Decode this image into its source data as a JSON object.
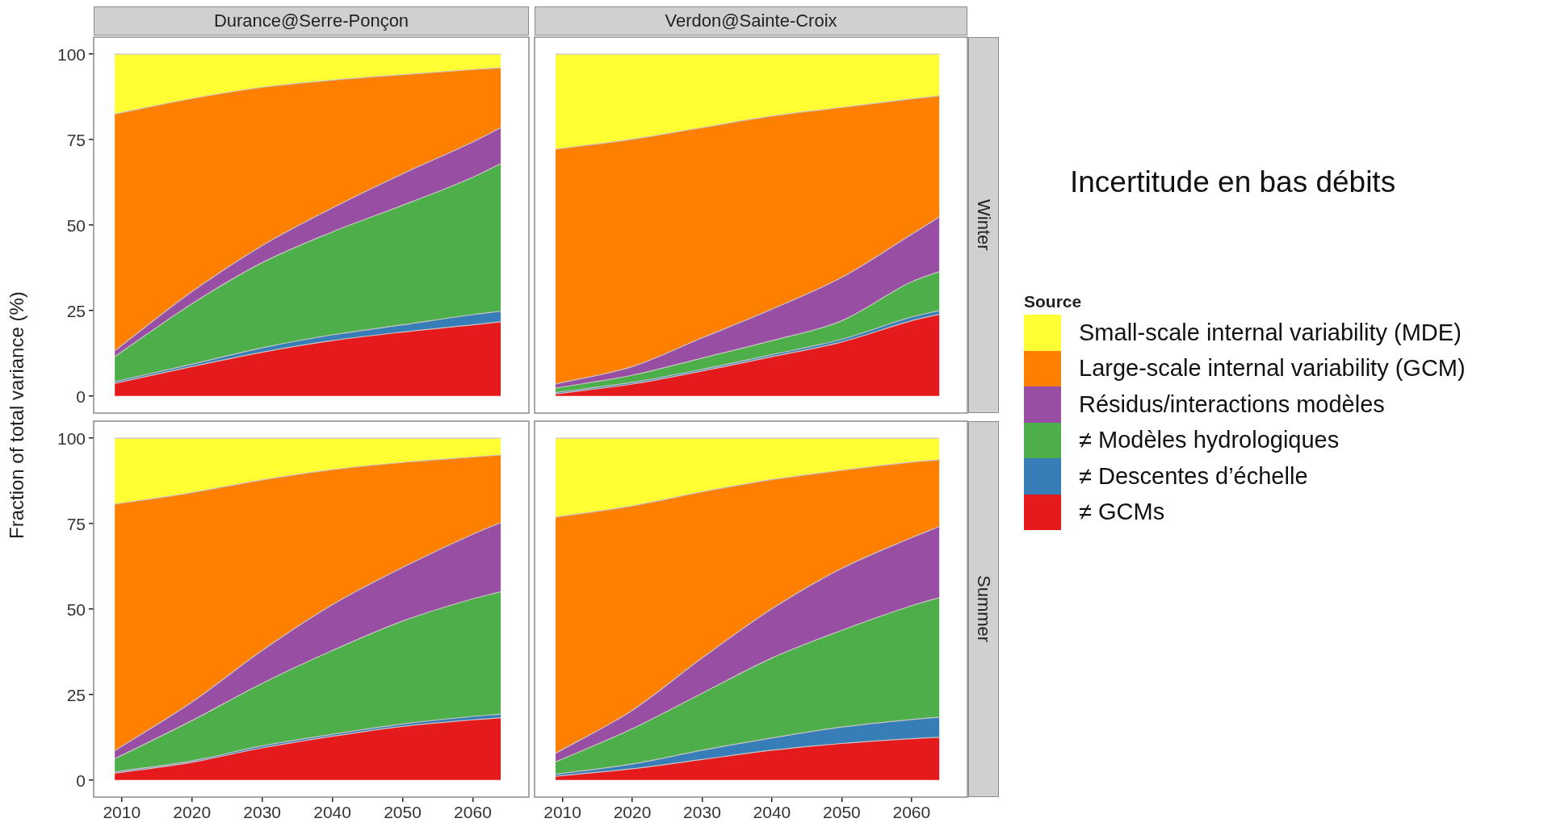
{
  "chart_data": [
    {
      "type": "area",
      "stacked": true,
      "title": "Durance@Serre-Ponçon",
      "ylabel": "Fraction of total variance (%)",
      "legend_title": "Source",
      "legend": "right",
      "annotations": [
        "Incertitude en bas débits"
      ],
      "tick_labels": "y",
      "x": [
        2009,
        2020,
        2030,
        2040,
        2050,
        2060,
        2064
      ],
      "xlim": [
        2006,
        2068
      ],
      "xticks": [
        2010,
        2020,
        2030,
        2040,
        2050,
        2060
      ],
      "ylim": [
        -5,
        105
      ],
      "yticks": [
        0,
        25,
        50,
        75,
        100
      ],
      "series": [
        {
          "name": "≠ GCMs",
          "color": "#e41a1c",
          "values": [
            3.7,
            8.6,
            12.8,
            16.2,
            18.7,
            20.8,
            21.7
          ]
        },
        {
          "name": "≠ Descentes d’échelle",
          "color": "#377eb8",
          "values": [
            0.5,
            0.7,
            1.3,
            1.7,
            2.1,
            3.0,
            3.1
          ]
        },
        {
          "name": "≠ Modèles hydrologiques",
          "color": "#4daf4a",
          "values": [
            7.3,
            17.7,
            24.9,
            30.1,
            35.0,
            40.2,
            43.2
          ]
        },
        {
          "name": "Résidus/interactions modèles",
          "color": "#984ea3",
          "values": [
            1.7,
            3.5,
            5.0,
            7.0,
            9.2,
            10.3,
            10.5
          ]
        },
        {
          "name": "Large-scale internal variability (GCM)",
          "color": "#ff7f00",
          "values": [
            69.3,
            56.5,
            46.3,
            37.4,
            29.0,
            21.2,
            17.5
          ]
        },
        {
          "name": "Small-scale internal variability (MDE)",
          "color": "#ffff33",
          "values": [
            17.5,
            13.0,
            9.7,
            7.6,
            6.0,
            4.5,
            4.0
          ]
        }
      ]
    },
    {
      "type": "area",
      "stacked": true,
      "title": "Verdon@Sainte-Croix",
      "subtitle": "Winter",
      "tick_labels": false,
      "x": [
        2009,
        2020,
        2030,
        2040,
        2050,
        2060,
        2064
      ],
      "xlim": [
        2006,
        2068
      ],
      "xticks": [
        2010,
        2020,
        2030,
        2040,
        2050,
        2060
      ],
      "ylim": [
        -5,
        105
      ],
      "yticks": [
        0,
        25,
        50,
        75,
        100
      ],
      "series": [
        {
          "color": "#e41a1c",
          "values": [
            0.6,
            3.5,
            7.3,
            11.5,
            15.8,
            22.0,
            23.9
          ]
        },
        {
          "color": "#377eb8",
          "values": [
            0.4,
            0.5,
            0.5,
            0.6,
            0.8,
            1.1,
            1.1
          ]
        },
        {
          "color": "#4daf4a",
          "values": [
            1.3,
            2.1,
            3.3,
            4.1,
            5.4,
            10.3,
            11.4
          ]
        },
        {
          "color": "#984ea3",
          "values": [
            1.2,
            2.5,
            5.9,
            9.2,
            12.7,
            13.9,
            16.0
          ]
        },
        {
          "color": "#ff7f00",
          "values": [
            68.7,
            66.5,
            61.5,
            56.5,
            49.7,
            39.6,
            35.4
          ]
        },
        {
          "color": "#ffff33",
          "values": [
            27.8,
            24.9,
            21.5,
            18.1,
            15.6,
            13.1,
            12.2
          ]
        }
      ]
    },
    {
      "type": "area",
      "stacked": true,
      "x": [
        2009,
        2020,
        2030,
        2040,
        2050,
        2060,
        2064
      ],
      "xlim": [
        2006,
        2068
      ],
      "xticks": [
        2010,
        2020,
        2030,
        2040,
        2050,
        2060
      ],
      "ylim": [
        -5,
        105
      ],
      "yticks": [
        0,
        25,
        50,
        75,
        100
      ],
      "series": [
        {
          "color": "#e41a1c",
          "values": [
            2.0,
            5.2,
            9.4,
            12.8,
            15.7,
            17.6,
            18.2
          ]
        },
        {
          "color": "#377eb8",
          "values": [
            0.4,
            0.4,
            0.6,
            0.6,
            0.7,
            1.0,
            1.1
          ]
        },
        {
          "color": "#4daf4a",
          "values": [
            3.8,
            11.8,
            18.3,
            24.5,
            30.1,
            34.4,
            35.8
          ]
        },
        {
          "color": "#984ea3",
          "values": [
            2.4,
            5.4,
            9.6,
            13.4,
            15.7,
            18.9,
            20.2
          ]
        },
        {
          "color": "#ff7f00",
          "values": [
            72.1,
            61.3,
            49.9,
            39.5,
            30.7,
            22.6,
            19.8
          ]
        },
        {
          "color": "#ffff33",
          "values": [
            19.3,
            15.9,
            12.2,
            9.2,
            7.1,
            5.5,
            4.9
          ]
        }
      ]
    },
    {
      "type": "area",
      "stacked": true,
      "subtitle": "Summer",
      "tick_labels": "x",
      "x": [
        2009,
        2020,
        2030,
        2040,
        2050,
        2060,
        2064
      ],
      "xlim": [
        2006,
        2068
      ],
      "xticks": [
        2010,
        2020,
        2030,
        2040,
        2050,
        2060
      ],
      "ylim": [
        -5,
        105
      ],
      "yticks": [
        0,
        25,
        50,
        75,
        100
      ],
      "series": [
        {
          "color": "#e41a1c",
          "values": [
            1.1,
            3.3,
            6.0,
            8.7,
            10.7,
            12.1,
            12.5
          ]
        },
        {
          "color": "#377eb8",
          "values": [
            0.6,
            1.4,
            2.7,
            3.6,
            4.8,
            5.6,
            5.9
          ]
        },
        {
          "color": "#4daf4a",
          "values": [
            3.6,
            10.3,
            16.7,
            23.4,
            28.3,
            33.3,
            35.0
          ]
        },
        {
          "color": "#984ea3",
          "values": [
            2.5,
            5.4,
            10.3,
            14.4,
            18.1,
            19.9,
            20.8
          ]
        },
        {
          "color": "#ff7f00",
          "values": [
            69.1,
            59.8,
            48.6,
            37.8,
            28.7,
            22.1,
            19.5
          ]
        },
        {
          "color": "#ffff33",
          "values": [
            23.1,
            19.8,
            15.7,
            12.1,
            9.4,
            7.0,
            6.3
          ]
        }
      ]
    }
  ]
}
